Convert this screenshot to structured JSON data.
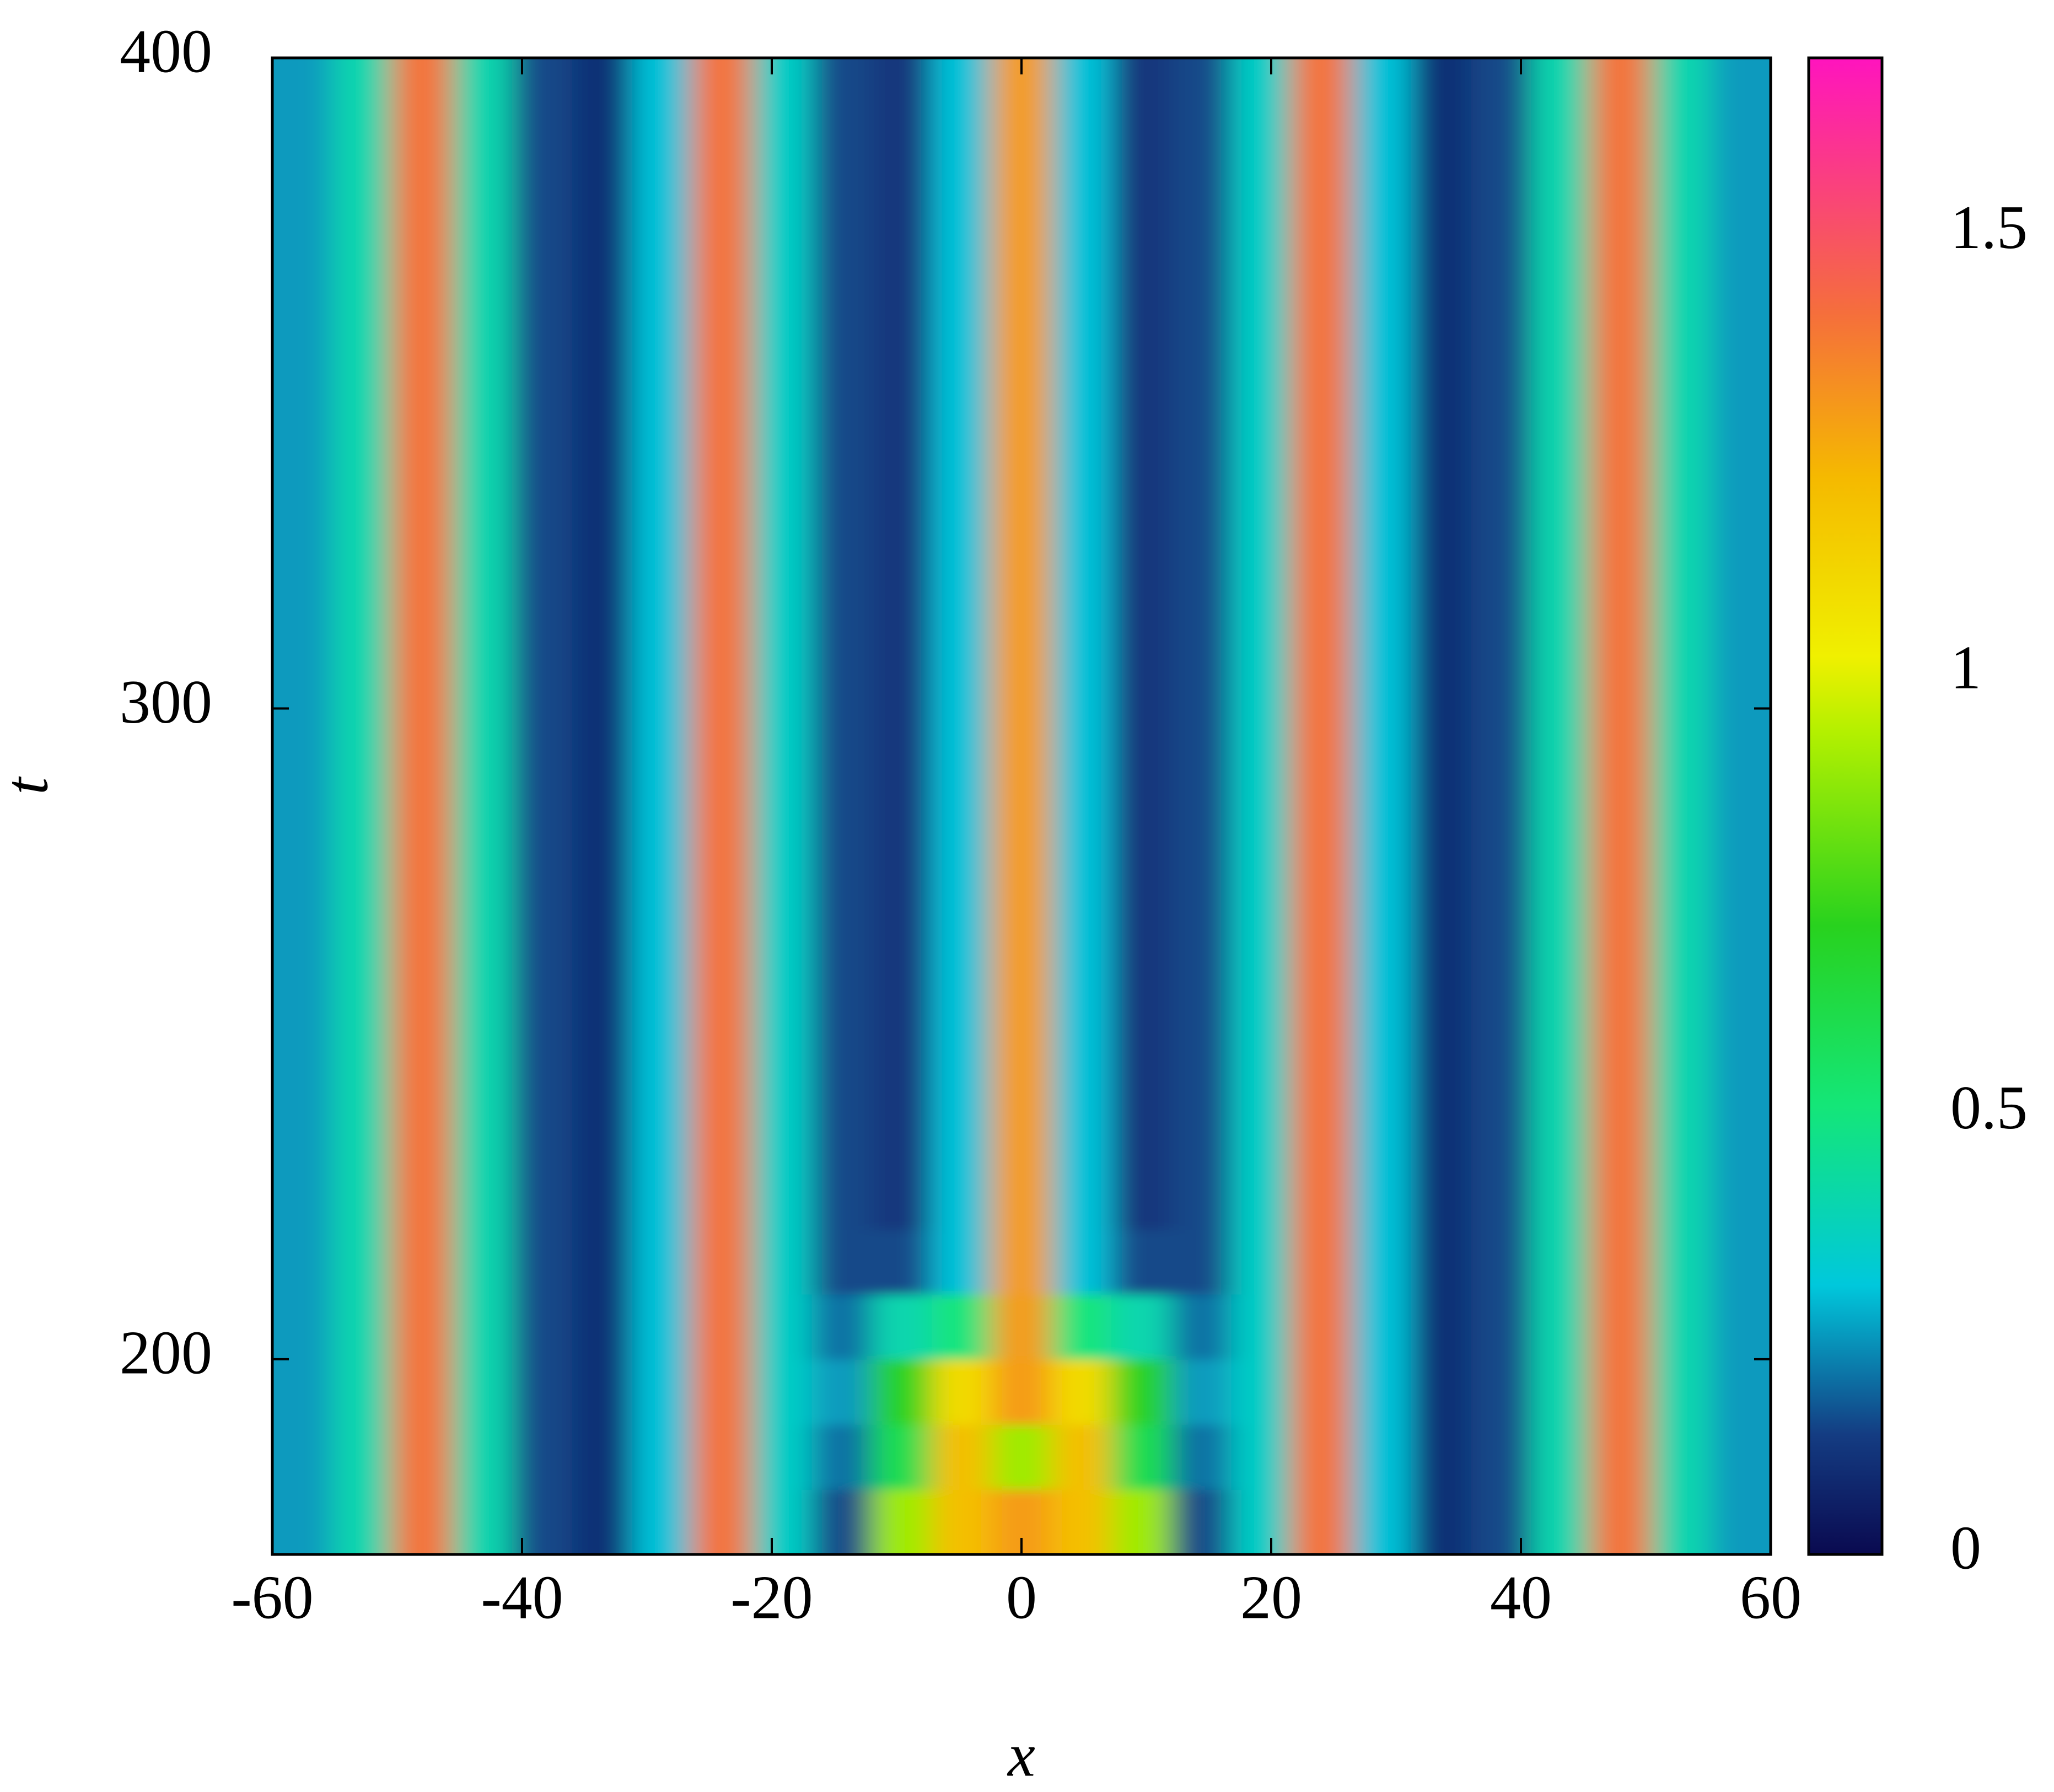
{
  "chart_data": {
    "type": "heatmap",
    "xlabel": "x",
    "ylabel": "t",
    "xlim": [
      -60,
      60
    ],
    "xticks": [
      -60,
      -40,
      -20,
      0,
      20,
      40,
      60
    ],
    "ylim": [
      170,
      400
    ],
    "yticks": [
      200,
      300,
      400
    ],
    "colorbar_lim": [
      0,
      1.7
    ],
    "colorbar_ticks": [
      0,
      0.5,
      1,
      1.5
    ],
    "x": [
      -57.6,
      -52.8,
      -48,
      -43.2,
      -38.4,
      -33.6,
      -28.8,
      -24,
      -19.2,
      -14.4,
      -9.6,
      -4.8,
      0,
      4.8,
      9.6,
      14.4,
      19.2,
      24,
      28.8,
      33.6,
      38.4,
      43.2,
      48,
      52.8,
      57.6
    ],
    "y": [
      175,
      185,
      195,
      205,
      215,
      225,
      235,
      245,
      255,
      265,
      275,
      285,
      295,
      305,
      315,
      325,
      335,
      345,
      355,
      365,
      375,
      385,
      395
    ],
    "z": [
      [
        0.25,
        0.4,
        1.4,
        0.4,
        0.15,
        0.1,
        0.3,
        1.4,
        0.35,
        0.15,
        0.9,
        1.2,
        1.3,
        1.2,
        0.9,
        0.15,
        0.35,
        1.4,
        0.3,
        0.1,
        0.15,
        0.4,
        1.4,
        0.4,
        0.25
      ],
      [
        0.25,
        0.4,
        1.4,
        0.4,
        0.15,
        0.1,
        0.3,
        1.4,
        0.35,
        0.2,
        0.6,
        1.2,
        0.9,
        1.2,
        0.6,
        0.2,
        0.35,
        1.4,
        0.3,
        0.1,
        0.15,
        0.4,
        1.4,
        0.4,
        0.25
      ],
      [
        0.25,
        0.4,
        1.4,
        0.4,
        0.15,
        0.1,
        0.3,
        1.4,
        0.35,
        0.25,
        0.7,
        1.1,
        1.3,
        1.1,
        0.7,
        0.25,
        0.35,
        1.4,
        0.3,
        0.1,
        0.15,
        0.4,
        1.4,
        0.4,
        0.25
      ],
      [
        0.25,
        0.4,
        1.4,
        0.4,
        0.15,
        0.1,
        0.3,
        1.4,
        0.35,
        0.2,
        0.4,
        0.5,
        1.3,
        0.5,
        0.4,
        0.2,
        0.35,
        1.4,
        0.3,
        0.1,
        0.15,
        0.4,
        1.4,
        0.4,
        0.25
      ],
      [
        0.25,
        0.4,
        1.4,
        0.4,
        0.15,
        0.1,
        0.3,
        1.4,
        0.35,
        0.15,
        0.15,
        0.3,
        1.3,
        0.3,
        0.15,
        0.15,
        0.35,
        1.4,
        0.3,
        0.1,
        0.15,
        0.4,
        1.4,
        0.4,
        0.25
      ],
      [
        0.25,
        0.4,
        1.4,
        0.4,
        0.15,
        0.1,
        0.3,
        1.4,
        0.35,
        0.15,
        0.12,
        0.3,
        1.3,
        0.3,
        0.12,
        0.15,
        0.35,
        1.4,
        0.3,
        0.1,
        0.15,
        0.4,
        1.4,
        0.4,
        0.25
      ],
      [
        0.25,
        0.4,
        1.4,
        0.4,
        0.15,
        0.1,
        0.3,
        1.4,
        0.35,
        0.15,
        0.12,
        0.3,
        1.3,
        0.3,
        0.12,
        0.15,
        0.35,
        1.4,
        0.3,
        0.1,
        0.15,
        0.4,
        1.4,
        0.4,
        0.25
      ],
      [
        0.25,
        0.4,
        1.4,
        0.4,
        0.15,
        0.1,
        0.3,
        1.4,
        0.35,
        0.15,
        0.12,
        0.3,
        1.3,
        0.3,
        0.12,
        0.15,
        0.35,
        1.4,
        0.3,
        0.1,
        0.15,
        0.4,
        1.4,
        0.4,
        0.25
      ],
      [
        0.25,
        0.4,
        1.4,
        0.4,
        0.15,
        0.1,
        0.3,
        1.4,
        0.35,
        0.15,
        0.12,
        0.3,
        1.3,
        0.3,
        0.12,
        0.15,
        0.35,
        1.4,
        0.3,
        0.1,
        0.15,
        0.4,
        1.4,
        0.4,
        0.25
      ],
      [
        0.25,
        0.4,
        1.4,
        0.4,
        0.15,
        0.1,
        0.3,
        1.4,
        0.35,
        0.15,
        0.12,
        0.3,
        1.3,
        0.3,
        0.12,
        0.15,
        0.35,
        1.4,
        0.3,
        0.1,
        0.15,
        0.4,
        1.4,
        0.4,
        0.25
      ],
      [
        0.25,
        0.4,
        1.4,
        0.4,
        0.15,
        0.1,
        0.3,
        1.4,
        0.35,
        0.15,
        0.12,
        0.3,
        1.3,
        0.3,
        0.12,
        0.15,
        0.35,
        1.4,
        0.3,
        0.1,
        0.15,
        0.4,
        1.4,
        0.4,
        0.25
      ],
      [
        0.25,
        0.4,
        1.4,
        0.4,
        0.15,
        0.1,
        0.3,
        1.4,
        0.35,
        0.15,
        0.12,
        0.3,
        1.3,
        0.3,
        0.12,
        0.15,
        0.35,
        1.4,
        0.3,
        0.1,
        0.15,
        0.4,
        1.4,
        0.4,
        0.25
      ],
      [
        0.25,
        0.4,
        1.4,
        0.4,
        0.15,
        0.1,
        0.3,
        1.4,
        0.35,
        0.15,
        0.12,
        0.3,
        1.3,
        0.3,
        0.12,
        0.15,
        0.35,
        1.4,
        0.3,
        0.1,
        0.15,
        0.4,
        1.4,
        0.4,
        0.25
      ],
      [
        0.25,
        0.4,
        1.4,
        0.4,
        0.15,
        0.1,
        0.3,
        1.4,
        0.35,
        0.15,
        0.12,
        0.3,
        1.3,
        0.3,
        0.12,
        0.15,
        0.35,
        1.4,
        0.3,
        0.1,
        0.15,
        0.4,
        1.4,
        0.4,
        0.25
      ],
      [
        0.25,
        0.4,
        1.4,
        0.4,
        0.15,
        0.1,
        0.3,
        1.4,
        0.35,
        0.15,
        0.12,
        0.3,
        1.3,
        0.3,
        0.12,
        0.15,
        0.35,
        1.4,
        0.3,
        0.1,
        0.15,
        0.4,
        1.4,
        0.4,
        0.25
      ],
      [
        0.25,
        0.4,
        1.4,
        0.4,
        0.15,
        0.1,
        0.3,
        1.4,
        0.35,
        0.15,
        0.12,
        0.3,
        1.3,
        0.3,
        0.12,
        0.15,
        0.35,
        1.4,
        0.3,
        0.1,
        0.15,
        0.4,
        1.4,
        0.4,
        0.25
      ],
      [
        0.25,
        0.4,
        1.4,
        0.4,
        0.15,
        0.1,
        0.3,
        1.4,
        0.35,
        0.15,
        0.12,
        0.3,
        1.3,
        0.3,
        0.12,
        0.15,
        0.35,
        1.4,
        0.3,
        0.1,
        0.15,
        0.4,
        1.4,
        0.4,
        0.25
      ],
      [
        0.25,
        0.4,
        1.4,
        0.4,
        0.15,
        0.1,
        0.3,
        1.4,
        0.35,
        0.15,
        0.12,
        0.3,
        1.3,
        0.3,
        0.12,
        0.15,
        0.35,
        1.4,
        0.3,
        0.1,
        0.15,
        0.4,
        1.4,
        0.4,
        0.25
      ],
      [
        0.25,
        0.4,
        1.4,
        0.4,
        0.15,
        0.1,
        0.3,
        1.4,
        0.35,
        0.15,
        0.12,
        0.3,
        1.3,
        0.3,
        0.12,
        0.15,
        0.35,
        1.4,
        0.3,
        0.1,
        0.15,
        0.4,
        1.4,
        0.4,
        0.25
      ],
      [
        0.25,
        0.4,
        1.4,
        0.4,
        0.15,
        0.1,
        0.3,
        1.4,
        0.35,
        0.15,
        0.12,
        0.3,
        1.3,
        0.3,
        0.12,
        0.15,
        0.35,
        1.4,
        0.3,
        0.1,
        0.15,
        0.4,
        1.4,
        0.4,
        0.25
      ],
      [
        0.25,
        0.4,
        1.4,
        0.4,
        0.15,
        0.1,
        0.3,
        1.4,
        0.35,
        0.15,
        0.12,
        0.3,
        1.3,
        0.3,
        0.12,
        0.15,
        0.35,
        1.4,
        0.3,
        0.1,
        0.15,
        0.4,
        1.4,
        0.4,
        0.25
      ],
      [
        0.25,
        0.4,
        1.4,
        0.4,
        0.15,
        0.1,
        0.3,
        1.4,
        0.35,
        0.15,
        0.12,
        0.3,
        1.3,
        0.3,
        0.12,
        0.15,
        0.35,
        1.4,
        0.3,
        0.1,
        0.15,
        0.4,
        1.4,
        0.4,
        0.25
      ],
      [
        0.25,
        0.4,
        1.4,
        0.4,
        0.15,
        0.1,
        0.3,
        1.4,
        0.35,
        0.15,
        0.12,
        0.3,
        1.3,
        0.3,
        0.12,
        0.15,
        0.35,
        1.4,
        0.3,
        0.1,
        0.15,
        0.4,
        1.4,
        0.4,
        0.25
      ]
    ]
  }
}
